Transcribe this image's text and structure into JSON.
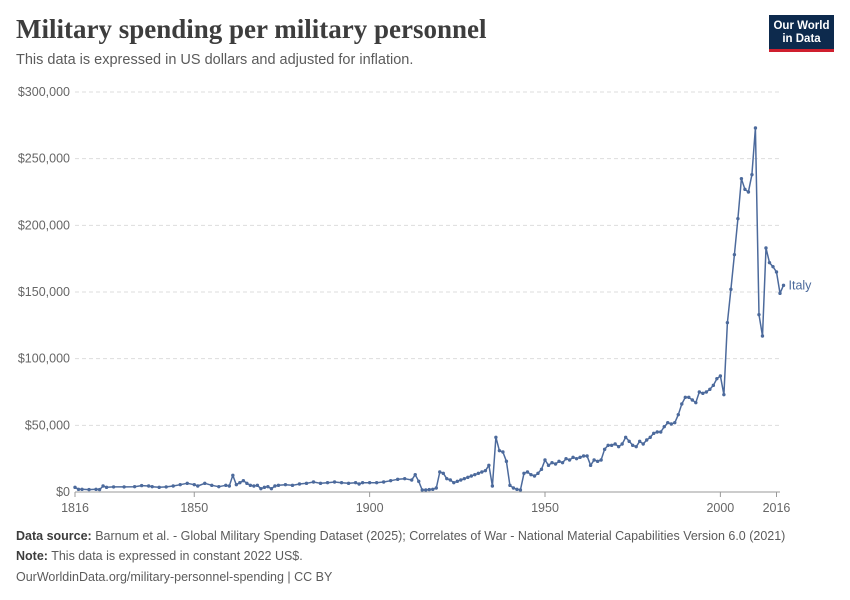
{
  "header": {
    "title": "Military spending per military personnel",
    "subtitle": "This data is expressed in US dollars and adjusted for inflation."
  },
  "logo": {
    "line1": "Our World",
    "line2": "in Data"
  },
  "footer": {
    "source_label": "Data source:",
    "source_text": "Barnum et al. - Global Military Spending Dataset (2025); Correlates of War - National Material Capabilities Version 6.0 (2021)",
    "note_label": "Note:",
    "note_text": "This data is expressed in constant 2022 US$.",
    "url": "OurWorldinData.org/military-personnel-spending | CC BY"
  },
  "colors": {
    "series": "#4c6a9c",
    "grid": "#dddddd",
    "axis": "#999999",
    "text": "#666666"
  },
  "chart_data": {
    "type": "line",
    "xlim": [
      1816,
      2017
    ],
    "ylim": [
      0,
      300000
    ],
    "x_ticks": [
      1816,
      1850,
      1900,
      1950,
      2000,
      2016
    ],
    "y_ticks": [
      0,
      50000,
      100000,
      150000,
      200000,
      250000,
      300000
    ],
    "y_tick_labels": [
      "$0",
      "$50,000",
      "$100,000",
      "$150,000",
      "$200,000",
      "$250,000",
      "$300,000"
    ],
    "grid": true,
    "series": [
      {
        "name": "Italy",
        "points": [
          [
            1816,
            3500
          ],
          [
            1817,
            2000
          ],
          [
            1818,
            2000
          ],
          [
            1820,
            1800
          ],
          [
            1822,
            2000
          ],
          [
            1823,
            1800
          ],
          [
            1824,
            4500
          ],
          [
            1825,
            3500
          ],
          [
            1827,
            3800
          ],
          [
            1830,
            3800
          ],
          [
            1833,
            4000
          ],
          [
            1835,
            4800
          ],
          [
            1837,
            4500
          ],
          [
            1838,
            4000
          ],
          [
            1840,
            3500
          ],
          [
            1842,
            3800
          ],
          [
            1844,
            4500
          ],
          [
            1846,
            5500
          ],
          [
            1848,
            6500
          ],
          [
            1850,
            5500
          ],
          [
            1851,
            4500
          ],
          [
            1853,
            6500
          ],
          [
            1855,
            5000
          ],
          [
            1857,
            4000
          ],
          [
            1859,
            5000
          ],
          [
            1860,
            4500
          ],
          [
            1861,
            12500
          ],
          [
            1862,
            5500
          ],
          [
            1863,
            7000
          ],
          [
            1864,
            8500
          ],
          [
            1865,
            6500
          ],
          [
            1866,
            5000
          ],
          [
            1867,
            4500
          ],
          [
            1868,
            5000
          ],
          [
            1869,
            2500
          ],
          [
            1870,
            3500
          ],
          [
            1871,
            4000
          ],
          [
            1872,
            2500
          ],
          [
            1873,
            4500
          ],
          [
            1874,
            5000
          ],
          [
            1876,
            5500
          ],
          [
            1878,
            5000
          ],
          [
            1880,
            6000
          ],
          [
            1882,
            6500
          ],
          [
            1884,
            7500
          ],
          [
            1886,
            6500
          ],
          [
            1888,
            7000
          ],
          [
            1890,
            7500
          ],
          [
            1892,
            7000
          ],
          [
            1894,
            6500
          ],
          [
            1896,
            7000
          ],
          [
            1897,
            6000
          ],
          [
            1898,
            7000
          ],
          [
            1900,
            7000
          ],
          [
            1902,
            7000
          ],
          [
            1904,
            7500
          ],
          [
            1906,
            8500
          ],
          [
            1908,
            9500
          ],
          [
            1910,
            10000
          ],
          [
            1912,
            9000
          ],
          [
            1913,
            13000
          ],
          [
            1914,
            8000
          ],
          [
            1915,
            1500
          ],
          [
            1916,
            1500
          ],
          [
            1917,
            1800
          ],
          [
            1918,
            2000
          ],
          [
            1919,
            3000
          ],
          [
            1920,
            15000
          ],
          [
            1921,
            14000
          ],
          [
            1922,
            10000
          ],
          [
            1923,
            9000
          ],
          [
            1924,
            7000
          ],
          [
            1925,
            8000
          ],
          [
            1926,
            9000
          ],
          [
            1927,
            10000
          ],
          [
            1928,
            11000
          ],
          [
            1929,
            12000
          ],
          [
            1930,
            13000
          ],
          [
            1931,
            14000
          ],
          [
            1932,
            15000
          ],
          [
            1933,
            16000
          ],
          [
            1934,
            20000
          ],
          [
            1935,
            4500
          ],
          [
            1936,
            41000
          ],
          [
            1937,
            31000
          ],
          [
            1938,
            30000
          ],
          [
            1939,
            23000
          ],
          [
            1940,
            5000
          ],
          [
            1941,
            3000
          ],
          [
            1942,
            2000
          ],
          [
            1943,
            1500
          ],
          [
            1944,
            14000
          ],
          [
            1945,
            15000
          ],
          [
            1946,
            13000
          ],
          [
            1947,
            12000
          ],
          [
            1948,
            14000
          ],
          [
            1949,
            17000
          ],
          [
            1950,
            24000
          ],
          [
            1951,
            20000
          ],
          [
            1952,
            22000
          ],
          [
            1953,
            21000
          ],
          [
            1954,
            23000
          ],
          [
            1955,
            22000
          ],
          [
            1956,
            25000
          ],
          [
            1957,
            24000
          ],
          [
            1958,
            26000
          ],
          [
            1959,
            25000
          ],
          [
            1960,
            26000
          ],
          [
            1961,
            27000
          ],
          [
            1962,
            27000
          ],
          [
            1963,
            20000
          ],
          [
            1964,
            24000
          ],
          [
            1965,
            23000
          ],
          [
            1966,
            24000
          ],
          [
            1967,
            32000
          ],
          [
            1968,
            35000
          ],
          [
            1969,
            35000
          ],
          [
            1970,
            36000
          ],
          [
            1971,
            34000
          ],
          [
            1972,
            36000
          ],
          [
            1973,
            41000
          ],
          [
            1974,
            38000
          ],
          [
            1975,
            35000
          ],
          [
            1976,
            34000
          ],
          [
            1977,
            38000
          ],
          [
            1978,
            36000
          ],
          [
            1979,
            39000
          ],
          [
            1980,
            41000
          ],
          [
            1981,
            44000
          ],
          [
            1982,
            45000
          ],
          [
            1983,
            45000
          ],
          [
            1984,
            49000
          ],
          [
            1985,
            52000
          ],
          [
            1986,
            51000
          ],
          [
            1987,
            52000
          ],
          [
            1988,
            58000
          ],
          [
            1989,
            66000
          ],
          [
            1990,
            71000
          ],
          [
            1991,
            71000
          ],
          [
            1992,
            69000
          ],
          [
            1993,
            67000
          ],
          [
            1994,
            75000
          ],
          [
            1995,
            74000
          ],
          [
            1996,
            75000
          ],
          [
            1997,
            77000
          ],
          [
            1998,
            80000
          ],
          [
            1999,
            85000
          ],
          [
            2000,
            87000
          ],
          [
            2001,
            73000
          ],
          [
            2002,
            127000
          ],
          [
            2003,
            152000
          ],
          [
            2004,
            178000
          ],
          [
            2005,
            205000
          ],
          [
            2006,
            235000
          ],
          [
            2007,
            227000
          ],
          [
            2008,
            225000
          ],
          [
            2009,
            238000
          ],
          [
            2010,
            273000
          ],
          [
            2011,
            133000
          ],
          [
            2012,
            117000
          ],
          [
            2013,
            183000
          ],
          [
            2014,
            172000
          ],
          [
            2015,
            169000
          ],
          [
            2016,
            165000
          ],
          [
            2017,
            149000
          ],
          [
            2018,
            155000
          ]
        ]
      }
    ]
  }
}
